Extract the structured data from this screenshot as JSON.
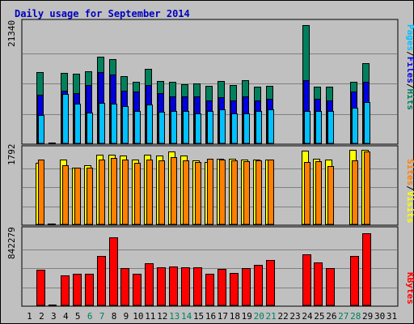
{
  "title": "Daily usage for September 2014",
  "colors": {
    "background": "#c0c0c0",
    "grid": "#808080",
    "title": "#0000c0",
    "hits": "#00805c",
    "files": "#0000e0",
    "pages": "#00c0ff",
    "visits": "#ffff00",
    "sites": "#ff8000",
    "kbytes": "#ff0000",
    "weekend_label": "#00805c",
    "weekday_label": "#000000"
  },
  "axis_labels": {
    "top_max": "21340",
    "middle_max": "1792",
    "bottom_max": "842279"
  },
  "right_labels": {
    "pages": "Pages",
    "files": "Files",
    "hits": "Hits",
    "sites": "Sites",
    "visits": "Visits",
    "kbytes": "KBytes",
    "separator": "/"
  },
  "chart_data": {
    "type": "bar",
    "title": "Daily usage for September 2014",
    "categories": [
      "1",
      "2",
      "3",
      "4",
      "5",
      "6",
      "7",
      "8",
      "9",
      "10",
      "11",
      "12",
      "13",
      "14",
      "15",
      "16",
      "17",
      "18",
      "19",
      "20",
      "21",
      "22",
      "23",
      "24",
      "25",
      "26",
      "27",
      "28",
      "29",
      "30",
      "31"
    ],
    "weekend_days": [
      "6",
      "7",
      "13",
      "14",
      "20",
      "21",
      "27",
      "28"
    ],
    "panels": [
      {
        "name": "top",
        "ylim": [
          0,
          21340
        ],
        "series": [
          {
            "name": "Hits",
            "values": [
              0,
              12700,
              0,
              12600,
              12400,
              12800,
              15500,
              15000,
              12000,
              11000,
              13200,
              11100,
              11000,
              10500,
              10600,
              10300,
              11100,
              10400,
              11300,
              10100,
              10200,
              0,
              0,
              21000,
              10100,
              10100,
              0,
              11000,
              14300,
              0,
              0
            ]
          },
          {
            "name": "Files",
            "values": [
              0,
              8700,
              0,
              9400,
              9000,
              10400,
              12700,
              12300,
              9400,
              9200,
              10400,
              8900,
              8400,
              8400,
              8400,
              7600,
              8200,
              7700,
              8400,
              7700,
              8000,
              0,
              0,
              11200,
              8000,
              7600,
              0,
              9200,
              11000,
              0,
              0
            ]
          },
          {
            "name": "Pages",
            "values": [
              0,
              5000,
              0,
              8800,
              7000,
              5500,
              7200,
              7000,
              6700,
              5700,
              6900,
              5600,
              5800,
              5700,
              5400,
              5800,
              6100,
              5300,
              5400,
              5800,
              6100,
              0,
              0,
              5800,
              5800,
              5800,
              0,
              6400,
              7400,
              0,
              0
            ]
          }
        ]
      },
      {
        "name": "middle",
        "ylim": [
          0,
          1792
        ],
        "series": [
          {
            "name": "Visits",
            "values": [
              0,
              1475,
              0,
              1550,
              1370,
              1415,
              1680,
              1670,
              1665,
              1560,
              1670,
              1650,
              1750,
              1650,
              1535,
              1500,
              1580,
              1575,
              1560,
              1555,
              1555,
              0,
              0,
              1780,
              1580,
              1560,
              0,
              1790,
              1785,
              0,
              0
            ]
          },
          {
            "name": "Sites",
            "values": [
              0,
              1555,
              0,
              1430,
              1370,
              1370,
              1555,
              1605,
              1555,
              1480,
              1550,
              1530,
              1610,
              1540,
              1505,
              1580,
              1550,
              1535,
              1510,
              1545,
              1555,
              0,
              0,
              1505,
              1520,
              1410,
              0,
              1540,
              1760,
              0,
              0
            ]
          }
        ]
      },
      {
        "name": "bottom",
        "ylim": [
          0,
          842279
        ],
        "series": [
          {
            "name": "KBytes",
            "values": [
              0,
              404000,
              0,
              335000,
              355000,
              358000,
              557000,
              771000,
              419000,
              358000,
              472000,
              434000,
              439000,
              434000,
              428000,
              359000,
              413000,
              368000,
              419000,
              459000,
              512000,
              0,
              0,
              580000,
              487000,
              424000,
              0,
              558000,
              819000,
              0,
              0
            ]
          }
        ]
      }
    ]
  }
}
